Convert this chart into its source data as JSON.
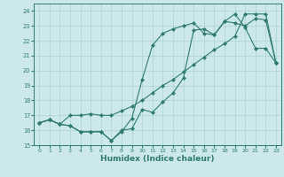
{
  "xlabel": "Humidex (Indice chaleur)",
  "bg_color": "#cce8ec",
  "grid_color": "#aad0d6",
  "line_color": "#2e7b6e",
  "xlim": [
    -0.5,
    23.5
  ],
  "ylim": [
    15,
    24.5
  ],
  "xticks": [
    0,
    1,
    2,
    3,
    4,
    5,
    6,
    7,
    8,
    9,
    10,
    11,
    12,
    13,
    14,
    15,
    16,
    17,
    18,
    19,
    20,
    21,
    22,
    23
  ],
  "yticks": [
    15,
    16,
    17,
    18,
    19,
    20,
    21,
    22,
    23,
    24
  ],
  "line1_x": [
    0,
    1,
    2,
    3,
    4,
    5,
    6,
    7,
    8,
    9,
    10,
    11,
    12,
    13,
    14,
    15,
    16,
    17,
    18,
    19,
    20,
    21,
    22,
    23
  ],
  "line1_y": [
    16.5,
    16.7,
    16.4,
    16.3,
    15.9,
    15.9,
    15.9,
    15.3,
    15.9,
    16.8,
    19.4,
    21.7,
    22.5,
    22.8,
    23.0,
    23.2,
    22.5,
    22.4,
    23.3,
    23.8,
    22.9,
    21.5,
    21.5,
    20.5
  ],
  "line2_x": [
    0,
    1,
    2,
    3,
    4,
    5,
    6,
    7,
    8,
    9,
    10,
    11,
    12,
    13,
    14,
    15,
    16,
    17,
    18,
    19,
    20,
    21,
    22,
    23
  ],
  "line2_y": [
    16.5,
    16.7,
    16.4,
    16.3,
    15.9,
    15.9,
    15.9,
    15.3,
    16.0,
    16.1,
    17.4,
    17.2,
    17.9,
    18.5,
    19.5,
    22.7,
    22.8,
    22.4,
    23.3,
    23.2,
    23.0,
    23.5,
    23.4,
    20.5
  ],
  "line3_x": [
    0,
    1,
    2,
    3,
    4,
    5,
    6,
    7,
    8,
    9,
    10,
    11,
    12,
    13,
    14,
    15,
    16,
    17,
    18,
    19,
    20,
    21,
    22,
    23
  ],
  "line3_y": [
    16.5,
    16.7,
    16.4,
    17.0,
    17.0,
    17.1,
    17.0,
    17.0,
    17.3,
    17.6,
    18.0,
    18.5,
    19.0,
    19.4,
    19.9,
    20.4,
    20.9,
    21.4,
    21.8,
    22.3,
    23.8,
    23.8,
    23.8,
    20.5
  ]
}
